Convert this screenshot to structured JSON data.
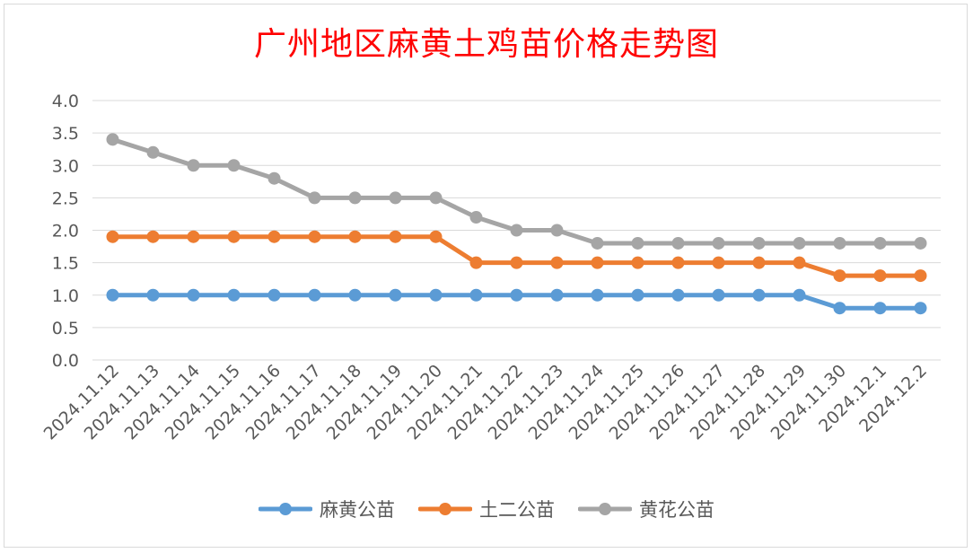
{
  "chart_data": {
    "type": "line",
    "title": "广州地区麻黄土鸡苗价格走势图",
    "xlabel": "",
    "ylabel": "",
    "ylim": [
      0,
      4.0
    ],
    "ytick_labels": [
      "0.0",
      "0.5",
      "1.0",
      "1.5",
      "2.0",
      "2.5",
      "3.0",
      "3.5",
      "4.0"
    ],
    "grid": true,
    "legend_position": "bottom",
    "categories": [
      "2024.11.12",
      "2024.11.13",
      "2024.11.14",
      "2024.11.15",
      "2024.11.16",
      "2024.11.17",
      "2024.11.18",
      "2024.11.19",
      "2024.11.20",
      "2024.11.21",
      "2024.11.22",
      "2024.11.23",
      "2024.11.24",
      "2024.11.25",
      "2024.11.26",
      "2024.11.27",
      "2024.11.28",
      "2024.11.29",
      "2024.11.30",
      "2024.12.1",
      "2024.12.2"
    ],
    "series": [
      {
        "name": "麻黄公苗",
        "color": "#5b9bd5",
        "values": [
          1.0,
          1.0,
          1.0,
          1.0,
          1.0,
          1.0,
          1.0,
          1.0,
          1.0,
          1.0,
          1.0,
          1.0,
          1.0,
          1.0,
          1.0,
          1.0,
          1.0,
          1.0,
          0.8,
          0.8,
          0.8
        ]
      },
      {
        "name": "土二公苗",
        "color": "#ed7d31",
        "values": [
          1.9,
          1.9,
          1.9,
          1.9,
          1.9,
          1.9,
          1.9,
          1.9,
          1.9,
          1.5,
          1.5,
          1.5,
          1.5,
          1.5,
          1.5,
          1.5,
          1.5,
          1.5,
          1.3,
          1.3,
          1.3
        ]
      },
      {
        "name": "黄花公苗",
        "color": "#a5a5a5",
        "values": [
          3.4,
          3.2,
          3.0,
          3.0,
          2.8,
          2.5,
          2.5,
          2.5,
          2.5,
          2.2,
          2.0,
          2.0,
          1.8,
          1.8,
          1.8,
          1.8,
          1.8,
          1.8,
          1.8,
          1.8,
          1.8
        ]
      }
    ]
  }
}
